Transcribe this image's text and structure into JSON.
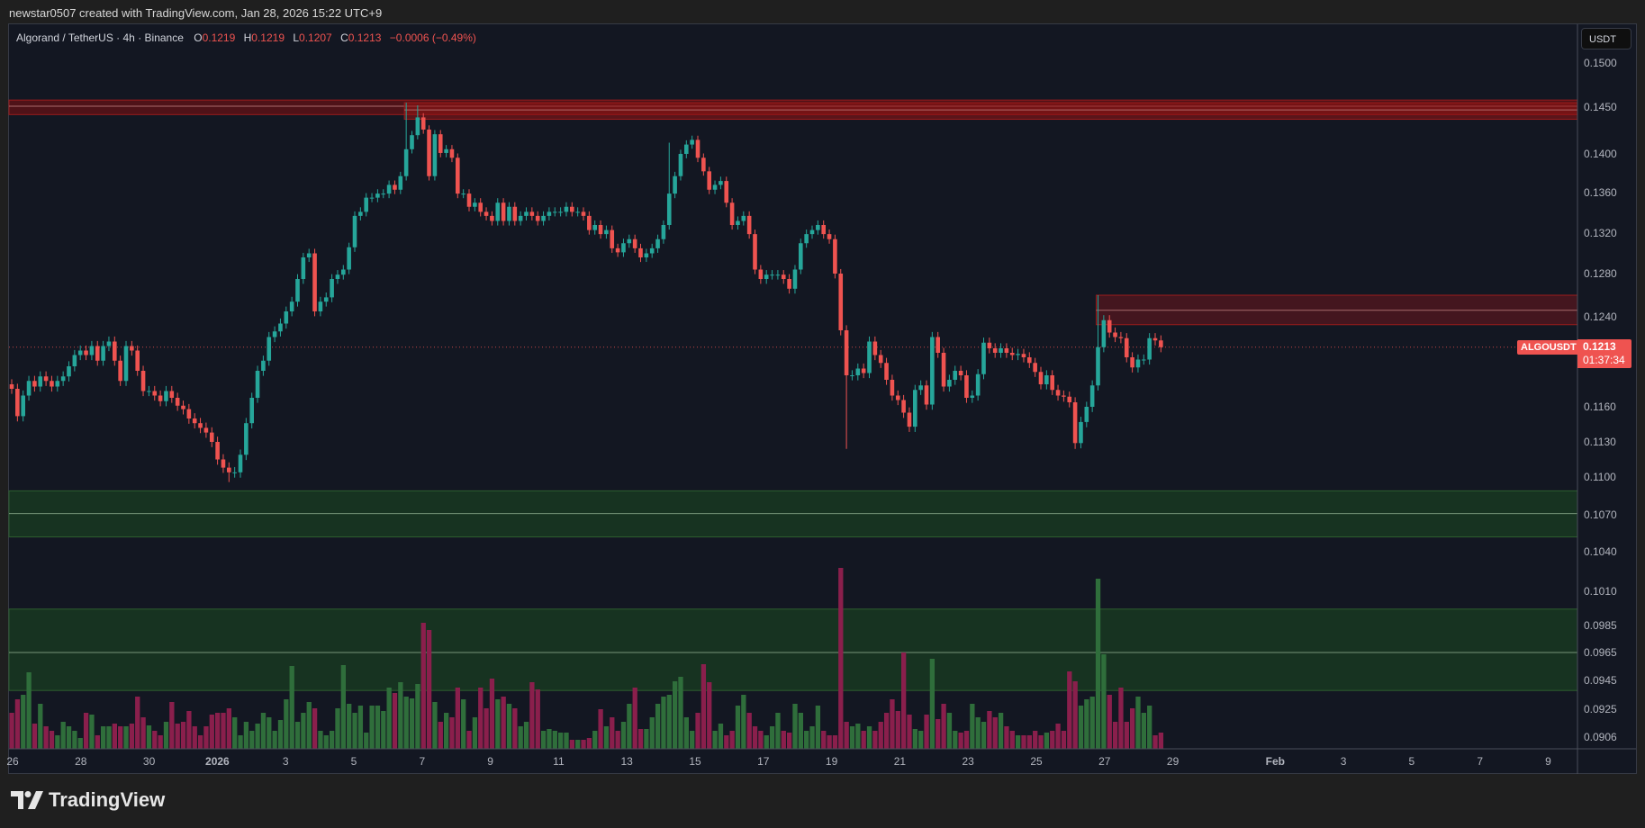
{
  "header": {
    "credit": "newstar0507 created with TradingView.com, Jan 28, 2026 15:22 UTC+9"
  },
  "legend": {
    "symbol": "Algorand / TetherUS · 4h · Binance",
    "o_label": "O",
    "o": "0.1219",
    "h_label": "H",
    "h": "0.1219",
    "l_label": "L",
    "l": "0.1207",
    "c_label": "C",
    "c": "0.1213",
    "change": "−0.0006 (−0.49%)"
  },
  "price_axis": {
    "currency": "USDT",
    "current_symbol": "ALGOUSDT",
    "current_price": "0.1213",
    "countdown": "01:37:34"
  },
  "footer": {
    "brand": "TradingView"
  },
  "colors": {
    "up": "#26a69a",
    "down": "#ef5350",
    "vol_up": "#2f6e3b",
    "vol_down": "#8a1f4c",
    "background": "#131722"
  },
  "chart_data": {
    "type": "candlestick",
    "title": "Algorand / TetherUS · 4h · Binance",
    "ylim": [
      0.0895,
      0.1515
    ],
    "y_ticks": [
      "0.1500",
      "0.1450",
      "0.1400",
      "0.1360",
      "0.1320",
      "0.1280",
      "0.1240",
      "0.1160",
      "0.1130",
      "0.1100",
      "0.1070",
      "0.1040",
      "0.1010",
      "0.0985",
      "0.0965",
      "0.0945",
      "0.0925",
      "0.0906"
    ],
    "x_ticks": [
      "26",
      "28",
      "30",
      "2026",
      "3",
      "5",
      "7",
      "9",
      "11",
      "13",
      "15",
      "17",
      "19",
      "21",
      "23",
      "25",
      "27",
      "29",
      "Feb",
      "3",
      "5",
      "7",
      "9"
    ],
    "x_tick_days": [
      0,
      2,
      4,
      6,
      8,
      10,
      12,
      14,
      16,
      18,
      20,
      22,
      24,
      26,
      28,
      30,
      32,
      34,
      37,
      39,
      41,
      43,
      45
    ],
    "start": "Dec 26 00:00",
    "candles_per_day": 6,
    "first_open": 0.118,
    "closes": [
      0.1176,
      0.1152,
      0.117,
      0.1183,
      0.1178,
      0.1187,
      0.1183,
      0.1178,
      0.1183,
      0.1187,
      0.1196,
      0.1206,
      0.121,
      0.1206,
      0.1214,
      0.1201,
      0.1214,
      0.1218,
      0.1201,
      0.1183,
      0.1214,
      0.121,
      0.1192,
      0.1174,
      0.1174,
      0.117,
      0.1165,
      0.1174,
      0.1168,
      0.1161,
      0.1158,
      0.115,
      0.1146,
      0.1142,
      0.1138,
      0.113,
      0.1115,
      0.1108,
      0.1104,
      0.1104,
      0.1119,
      0.1146,
      0.1168,
      0.1192,
      0.1201,
      0.1222,
      0.1227,
      0.1234,
      0.1245,
      0.1254,
      0.1275,
      0.1296,
      0.13,
      0.1245,
      0.1254,
      0.1258,
      0.1275,
      0.1279,
      0.1284,
      0.1306,
      0.1337,
      0.1341,
      0.1355,
      0.1355,
      0.1359,
      0.1359,
      0.1368,
      0.1363,
      0.1377,
      0.1405,
      0.142,
      0.1439,
      0.1426,
      0.1377,
      0.1421,
      0.1401,
      0.1405,
      0.1396,
      0.1359,
      0.1359,
      0.1346,
      0.135,
      0.1341,
      0.1337,
      0.1332,
      0.135,
      0.1332,
      0.1346,
      0.1332,
      0.1337,
      0.1341,
      0.1337,
      0.1332,
      0.1337,
      0.1341,
      0.1341,
      0.1341,
      0.1346,
      0.1341,
      0.1341,
      0.1337,
      0.1323,
      0.1328,
      0.1319,
      0.1323,
      0.1305,
      0.1301,
      0.131,
      0.1314,
      0.1305,
      0.1296,
      0.13,
      0.1305,
      0.1314,
      0.1328,
      0.1359,
      0.1377,
      0.14,
      0.141,
      0.1415,
      0.1396,
      0.1382,
      0.1363,
      0.1368,
      0.1372,
      0.135,
      0.1328,
      0.1332,
      0.1337,
      0.1319,
      0.1284,
      0.1275,
      0.1279,
      0.1279,
      0.1279,
      0.1275,
      0.1266,
      0.1284,
      0.131,
      0.1319,
      0.1323,
      0.1328,
      0.1319,
      0.1314,
      0.128,
      0.1228,
      0.1188,
      0.1188,
      0.1194,
      0.119,
      0.1218,
      0.1206,
      0.1199,
      0.1184,
      0.117,
      0.1166,
      0.1155,
      0.1143,
      0.1175,
      0.1179,
      0.1162,
      0.1222,
      0.1208,
      0.1178,
      0.1184,
      0.1192,
      0.1188,
      0.1168,
      0.117,
      0.1189,
      0.1217,
      0.1212,
      0.1208,
      0.1212,
      0.1208,
      0.1206,
      0.1207,
      0.1204,
      0.1199,
      0.1191,
      0.118,
      0.1188,
      0.1175,
      0.117,
      0.1169,
      0.1164,
      0.1129,
      0.1147,
      0.116,
      0.1179,
      0.1213,
      0.1237,
      0.1226,
      0.1222,
      0.1221,
      0.1204,
      0.1195,
      0.1202,
      0.1202,
      0.1221,
      0.1219,
      0.1213
    ],
    "notable_highs": {
      "69": 0.1455,
      "71": 0.1452,
      "115": 0.1412,
      "190": 0.126
    },
    "notable_lows": {
      "38": 0.1096,
      "146": 0.1124,
      "186": 0.1124
    },
    "volumes": [
      40,
      55,
      60,
      85,
      28,
      50,
      25,
      20,
      15,
      30,
      25,
      20,
      12,
      40,
      38,
      15,
      25,
      25,
      28,
      25,
      25,
      28,
      58,
      35,
      26,
      20,
      15,
      30,
      52,
      28,
      30,
      42,
      25,
      15,
      25,
      38,
      40,
      40,
      45,
      35,
      15,
      30,
      20,
      28,
      40,
      35,
      20,
      32,
      55,
      92,
      30,
      40,
      52,
      45,
      20,
      15,
      20,
      45,
      93,
      50,
      40,
      48,
      18,
      48,
      48,
      42,
      68,
      62,
      74,
      58,
      56,
      72,
      140,
      132,
      52,
      30,
      40,
      35,
      68,
      55,
      20,
      35,
      68,
      45,
      78,
      55,
      58,
      50,
      45,
      25,
      30,
      74,
      66,
      20,
      22,
      20,
      18,
      18,
      10,
      10,
      10,
      12,
      20,
      44,
      25,
      35,
      20,
      30,
      50,
      68,
      22,
      22,
      35,
      50,
      58,
      60,
      75,
      80,
      35,
      20,
      40,
      94,
      74,
      20,
      28,
      15,
      20,
      48,
      60,
      40,
      25,
      20,
      15,
      25,
      40,
      20,
      18,
      50,
      40,
      20,
      25,
      48,
      20,
      15,
      15,
      201,
      30,
      25,
      28,
      20,
      25,
      20,
      30,
      40,
      55,
      42,
      107,
      38,
      22,
      20,
      38,
      100,
      33,
      50,
      40,
      20,
      18,
      20,
      50,
      35,
      30,
      42,
      35,
      40,
      25,
      20,
      15,
      15,
      15,
      20,
      15,
      18,
      20,
      28,
      20,
      86,
      75,
      48,
      55,
      58,
      189,
      105,
      60,
      30,
      68,
      30,
      45,
      58,
      40,
      48,
      15,
      18
    ],
    "zones": [
      {
        "kind": "resistance",
        "top": 0.1458,
        "bottom": 0.1442,
        "mid": 0.1451,
        "from_index": 0
      },
      {
        "kind": "resistance",
        "top": 0.1455,
        "bottom": 0.1437,
        "mid": 0.1447,
        "from_index": 69
      },
      {
        "kind": "resistance",
        "top": 0.126,
        "bottom": 0.1233,
        "mid": 0.1246,
        "from_index": 190
      },
      {
        "kind": "support",
        "top": 0.1089,
        "bottom": 0.1052,
        "mid": 0.1071,
        "from_index": 0
      },
      {
        "kind": "support",
        "top": 0.0997,
        "bottom": 0.0938,
        "mid": 0.0965,
        "from_index": 0
      }
    ],
    "last_price": 0.1213
  }
}
